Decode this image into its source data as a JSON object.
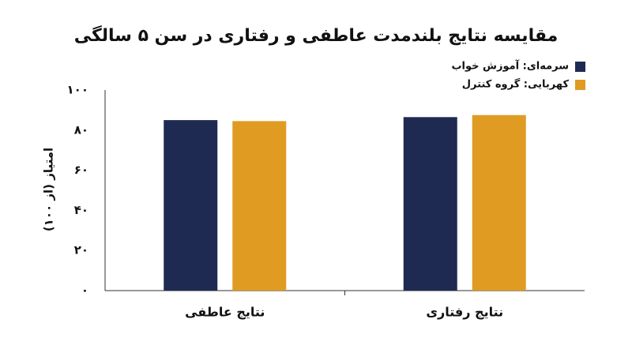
{
  "chart_data": {
    "type": "bar",
    "title": "مقایسه نتایج بلندمدت عاطفی و رفتاری در سن ۵ سالگی",
    "y_label": "امتیاز (از ۱۰۰)",
    "categories": [
      "نتایج عاطفی",
      "نتایج رفتاری"
    ],
    "series": [
      {
        "name": "سرمه‌ای: آموزش خواب",
        "color": "#1f2a52",
        "values": [
          85,
          86.5
        ]
      },
      {
        "name": "کهربایی: گروه کنترل",
        "color": "#e09b22",
        "values": [
          84.5,
          87.5
        ]
      }
    ],
    "ylim": [
      0,
      100
    ],
    "yticks": [
      {
        "value": 0,
        "label": "۰"
      },
      {
        "value": 20,
        "label": "۲۰"
      },
      {
        "value": 40,
        "label": "۴۰"
      },
      {
        "value": 60,
        "label": "۶۰"
      },
      {
        "value": 80,
        "label": "۸۰"
      },
      {
        "value": 100,
        "label": "۱۰۰"
      }
    ],
    "grid": false,
    "legend": "top-right"
  }
}
